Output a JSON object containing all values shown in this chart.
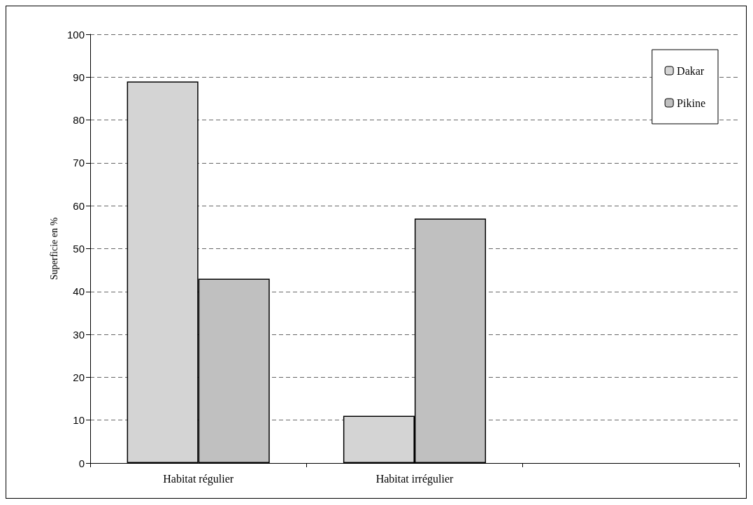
{
  "chart_data": {
    "type": "bar",
    "ylabel": "Superficie en %",
    "categories": [
      "Habitat régulier",
      "Habitat irrégulier",
      null
    ],
    "series": [
      {
        "name": "Dakar",
        "color": "#d4d4d4",
        "values": [
          89,
          11,
          null
        ]
      },
      {
        "name": "Pikine",
        "color": "#c0c0c0",
        "values": [
          43,
          57,
          null
        ]
      }
    ],
    "ylim": [
      0,
      100
    ],
    "yticks": [
      0,
      10,
      20,
      30,
      40,
      50,
      60,
      70,
      80,
      90,
      100
    ],
    "grid": "y",
    "legend": "top right"
  }
}
